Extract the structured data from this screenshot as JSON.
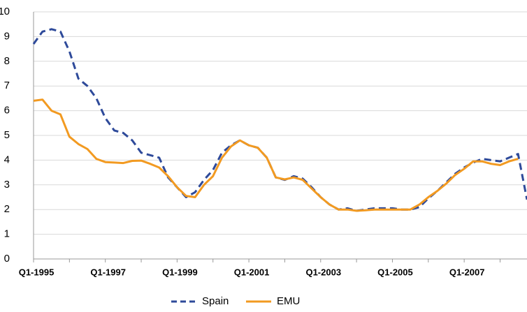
{
  "chart_data": {
    "type": "line",
    "categories": [
      "Q1-1995",
      null,
      null,
      null,
      null,
      null,
      null,
      null,
      "Q1-1997",
      null,
      null,
      null,
      null,
      null,
      null,
      null,
      "Q1-1999",
      null,
      null,
      null,
      null,
      null,
      null,
      null,
      "Q1-2001",
      null,
      null,
      null,
      null,
      null,
      null,
      null,
      "Q1-2003",
      null,
      null,
      null,
      null,
      null,
      null,
      null,
      "Q1-2005",
      null,
      null,
      null,
      null,
      null,
      null,
      null,
      "Q1-2007",
      null,
      null,
      null,
      null,
      null,
      null,
      null
    ],
    "series": [
      {
        "name": "Spain",
        "color": "#2e4a9a",
        "dashed": true,
        "values": [
          8.7,
          9.2,
          9.3,
          9.2,
          8.4,
          7.3,
          7.0,
          6.5,
          5.7,
          5.2,
          5.1,
          4.8,
          4.3,
          4.2,
          4.1,
          3.3,
          2.9,
          2.5,
          2.7,
          3.2,
          3.6,
          4.3,
          4.6,
          4.8,
          4.6,
          4.5,
          4.1,
          3.3,
          3.2,
          3.35,
          3.25,
          2.9,
          2.5,
          2.2,
          2.0,
          2.05,
          1.95,
          2.0,
          2.05,
          2.05,
          2.05,
          2.0,
          2.0,
          2.1,
          2.45,
          2.75,
          3.1,
          3.45,
          3.7,
          3.9,
          4.05,
          4.0,
          3.95,
          4.1,
          4.25,
          2.4
        ]
      },
      {
        "name": "EMU",
        "color": "#f29a21",
        "dashed": false,
        "values": [
          6.4,
          6.45,
          6.0,
          5.85,
          4.95,
          4.65,
          4.45,
          4.05,
          3.92,
          3.9,
          3.88,
          3.97,
          3.98,
          3.85,
          3.7,
          3.35,
          2.9,
          2.55,
          2.5,
          3.0,
          3.35,
          4.1,
          4.55,
          4.8,
          4.6,
          4.5,
          4.1,
          3.3,
          3.22,
          3.3,
          3.2,
          2.85,
          2.5,
          2.2,
          2.0,
          2.0,
          1.95,
          1.97,
          2.0,
          2.0,
          2.0,
          2.0,
          2.0,
          2.2,
          2.5,
          2.75,
          3.05,
          3.4,
          3.65,
          3.95,
          3.95,
          3.85,
          3.8,
          3.95,
          4.05,
          null
        ]
      }
    ],
    "ylim": [
      0,
      10
    ],
    "yticks": [
      0,
      1,
      2,
      3,
      4,
      5,
      6,
      7,
      8,
      9,
      10
    ],
    "grid": true,
    "legend": "bottom"
  }
}
